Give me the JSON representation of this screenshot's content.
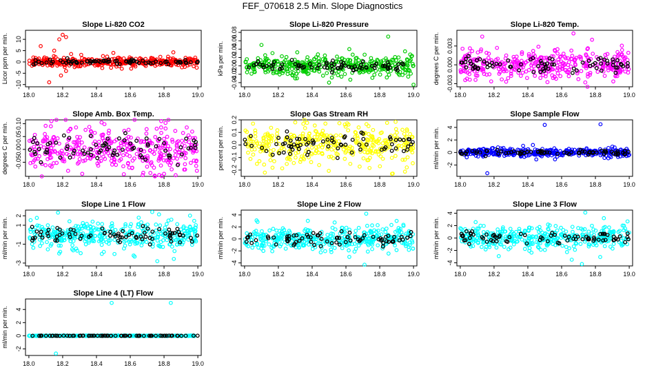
{
  "figure_title": "FEF_070618  2.5 Min. Slope Diagnostics",
  "colors": {
    "co2": "#ff0000",
    "pressure": "#00cc00",
    "temp": "#ff00ff",
    "box": "#ff00ff",
    "rh": "#ffff00",
    "sample": "#0000ff",
    "line": "#00ffff",
    "overlay": "#000000"
  },
  "x_ticks": [
    "18.0",
    "18.2",
    "18.4",
    "18.6",
    "18.8",
    "19.0"
  ],
  "chart_data": [
    {
      "type": "scatter",
      "title": "Slope Li-820 CO2",
      "ylabel": "Licor ppm per min.",
      "xlim": [
        17.98,
        19.02
      ],
      "ylim": [
        -11,
        14
      ],
      "yticks": [
        -10,
        -5,
        0,
        5,
        10
      ],
      "ytick_labels": [
        "-10",
        "-5",
        "0",
        "5",
        "10"
      ],
      "color_key": "co2",
      "spread": 1.0,
      "spikes": [
        [
          18.07,
          7
        ],
        [
          18.18,
          10
        ],
        [
          18.2,
          12
        ],
        [
          18.22,
          11
        ],
        [
          18.12,
          -9
        ],
        [
          18.19,
          -6
        ],
        [
          18.22,
          -4
        ],
        [
          18.5,
          4
        ],
        [
          18.55,
          -3
        ],
        [
          18.25,
          3.5
        ],
        [
          18.15,
          5
        ]
      ]
    },
    {
      "type": "scatter",
      "title": "Slope Li-820 Pressure",
      "ylabel": "kPa per min.",
      "xlim": [
        17.98,
        19.02
      ],
      "ylim": [
        -0.05,
        0.085
      ],
      "yticks": [
        -0.04,
        -0.02,
        0.0,
        0.02,
        0.04,
        0.06,
        0.08
      ],
      "ytick_labels": [
        "-0.04",
        "-0.02",
        "0.00",
        "0.02",
        "0.04",
        "0.06",
        "0.08"
      ],
      "color_key": "pressure",
      "spread": 0.012,
      "spikes": [
        [
          18.1,
          0.05
        ],
        [
          18.85,
          0.07
        ],
        [
          18.5,
          -0.04
        ],
        [
          19.0,
          -0.045
        ],
        [
          18.3,
          -0.03
        ],
        [
          18.62,
          0.04
        ]
      ]
    },
    {
      "type": "scatter",
      "title": "Slope Li-820 Temp.",
      "ylabel": "degrees C per min.",
      "xlim": [
        17.98,
        19.02
      ],
      "ylim": [
        -0.0035,
        0.0055
      ],
      "yticks": [
        -0.003,
        0.0,
        0.003
      ],
      "ytick_labels": [
        "-0.003",
        "0.000",
        "0.003"
      ],
      "color_key": "temp",
      "spread": 0.0012,
      "spikes": [
        [
          18.13,
          0.0045
        ],
        [
          18.67,
          0.005
        ],
        [
          18.74,
          -0.0028
        ],
        [
          18.78,
          0.004
        ],
        [
          18.04,
          -0.0022
        ]
      ]
    },
    {
      "type": "scatter",
      "title": "Slope Amb. Box Temp.",
      "ylabel": "degrees C per min.",
      "xlim": [
        17.98,
        19.02
      ],
      "ylim": [
        -0.105,
        0.115
      ],
      "yticks": [
        -0.05,
        0.0,
        0.05,
        0.1
      ],
      "ytick_labels": [
        "-0.05",
        "0.00",
        "0.05",
        "0.10"
      ],
      "color_key": "box",
      "spread": 0.045,
      "spikes": [
        [
          18.43,
          0.105
        ],
        [
          18.13,
          0.09
        ],
        [
          18.8,
          -0.095
        ]
      ]
    },
    {
      "type": "scatter",
      "title": "Slope Gas Stream RH",
      "ylabel": "percent per min.",
      "xlim": [
        17.98,
        19.02
      ],
      "ylim": [
        -0.25,
        0.2
      ],
      "yticks": [
        -0.2,
        -0.1,
        0.0,
        0.1,
        0.2
      ],
      "ytick_labels": [
        "-0.2",
        "-0.1",
        "0.0",
        "0.1",
        "0.2"
      ],
      "color_key": "rh",
      "spread": 0.08,
      "spikes": [
        [
          18.05,
          0.17
        ],
        [
          18.12,
          -0.22
        ],
        [
          18.3,
          0.18
        ]
      ]
    },
    {
      "type": "scatter",
      "title": "Slope Sample Flow",
      "ylabel": "ml/min per min.",
      "xlim": [
        17.98,
        19.02
      ],
      "ylim": [
        -3.8,
        5.2
      ],
      "yticks": [
        -2,
        0,
        2,
        4
      ],
      "ytick_labels": [
        "-2",
        "0",
        "2",
        "4"
      ],
      "color_key": "sample",
      "spread": 0.35,
      "spikes": [
        [
          18.5,
          4.4
        ],
        [
          18.83,
          4.5
        ],
        [
          18.16,
          -3.3
        ],
        [
          18.43,
          1.2
        ],
        [
          18.45,
          -1.1
        ]
      ]
    },
    {
      "type": "scatter",
      "title": "Slope Line 1 Flow",
      "ylabel": "ml/min per min.",
      "xlim": [
        17.98,
        19.02
      ],
      "ylim": [
        -3.3,
        2.6
      ],
      "yticks": [
        -3,
        -1,
        1,
        2
      ],
      "ytick_labels": [
        "-3",
        "-1",
        "1",
        "2"
      ],
      "color_key": "line",
      "spread": 0.75,
      "spikes": [
        [
          18.73,
          2.4
        ],
        [
          18.76,
          -2.8
        ],
        [
          18.62,
          -2.2
        ],
        [
          18.65,
          1.8
        ]
      ]
    },
    {
      "type": "scatter",
      "title": "Slope Line 2 Flow",
      "ylabel": "ml/min per min.",
      "xlim": [
        17.98,
        19.02
      ],
      "ylim": [
        -4.5,
        4.8
      ],
      "yticks": [
        -4,
        -2,
        0,
        2,
        4
      ],
      "ytick_labels": [
        "-4",
        "-2",
        "0",
        "2",
        "4"
      ],
      "color_key": "line",
      "spread": 1.0,
      "spikes": [
        [
          18.72,
          4.2
        ],
        [
          18.71,
          -4.3
        ],
        [
          18.62,
          -3
        ],
        [
          18.9,
          3
        ]
      ]
    },
    {
      "type": "scatter",
      "title": "Slope Line 3 Flow",
      "ylabel": "ml/min per min.",
      "xlim": [
        17.98,
        19.02
      ],
      "ylim": [
        -4.5,
        4.5
      ],
      "yticks": [
        -4,
        -2,
        0,
        2,
        4
      ],
      "ytick_labels": [
        "-4",
        "-2",
        "0",
        "2",
        "4"
      ],
      "color_key": "line",
      "spread": 0.95,
      "spikes": [
        [
          18.74,
          4.1
        ],
        [
          18.72,
          -4.2
        ],
        [
          18.66,
          -3.5
        ],
        [
          18.85,
          3.2
        ]
      ]
    },
    {
      "type": "scatter",
      "title": "Slope Line 4 (LT) Flow",
      "ylabel": "ml/min per min.",
      "xlim": [
        17.98,
        19.02
      ],
      "ylim": [
        -3.0,
        5.6
      ],
      "yticks": [
        -2,
        0,
        2,
        4
      ],
      "ytick_labels": [
        "-2",
        "0",
        "2",
        "4"
      ],
      "color_key": "line",
      "spread": 0.02,
      "spikes": [
        [
          18.49,
          5.0
        ],
        [
          18.84,
          5.0
        ],
        [
          18.16,
          -2.7
        ]
      ]
    }
  ]
}
